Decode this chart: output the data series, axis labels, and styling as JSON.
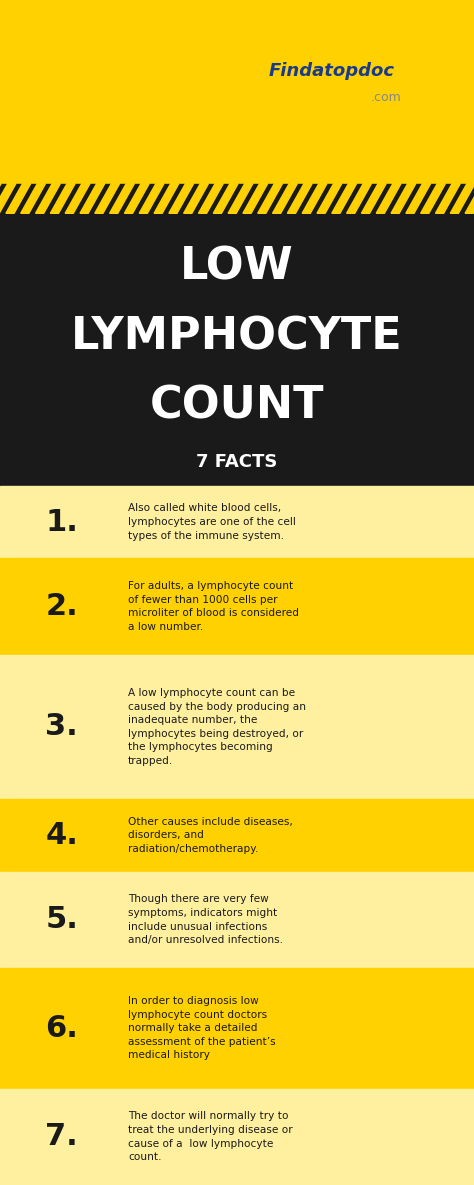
{
  "title_line1": "LOW",
  "title_line2": "LYMPHOCYTE",
  "title_line3": "COUNT",
  "subtitle": "7 FACTS",
  "header_bg": "#FFD100",
  "title_bg": "#1a1a1a",
  "stripe_color1": "#FFD100",
  "stripe_color2": "#1a1a1a",
  "facts_bg_light": "#FFF0A0",
  "facts_bg_medium": "#FFD100",
  "num_color": "#1a1a1a",
  "text_color": "#1a1a1a",
  "facts": [
    {
      "number": "1.",
      "text": "Also called white blood cells,\nlymphocytes are one of the cell\ntypes of the immune system.",
      "bg": "#FFF0A0"
    },
    {
      "number": "2.",
      "text": "For adults, a lymphocyte count\nof fewer than 1000 cells per\nmicroliter of blood is considered\na low number.",
      "bg": "#FFD100"
    },
    {
      "number": "3.",
      "text": "A low lymphocyte count can be\ncaused by the body producing an\ninadequate number, the\nlymphocytes being destroyed, or\nthe lymphocytes becoming\ntrapped.",
      "bg": "#FFF0A0"
    },
    {
      "number": "4.",
      "text": "Other causes include diseases,\ndisorders, and\nradiation/chemotherapy.",
      "bg": "#FFD100"
    },
    {
      "number": "5.",
      "text": "Though there are very few\nsymptoms, indicators might\ninclude unusual infections\nand/or unresolved infections.",
      "bg": "#FFF0A0"
    },
    {
      "number": "6.",
      "text": "In order to diagnosis low\nlymphocyte count doctors\nnormally take a detailed\nassessment of the patient’s\nmedical history",
      "bg": "#FFD100"
    },
    {
      "number": "7.",
      "text": "The doctor will normally try to\ntreat the underlying disease or\ncause of a  low lymphocyte\ncount.",
      "bg": "#FFF0A0"
    }
  ],
  "line_counts": [
    3,
    4,
    6,
    3,
    4,
    5,
    4
  ]
}
